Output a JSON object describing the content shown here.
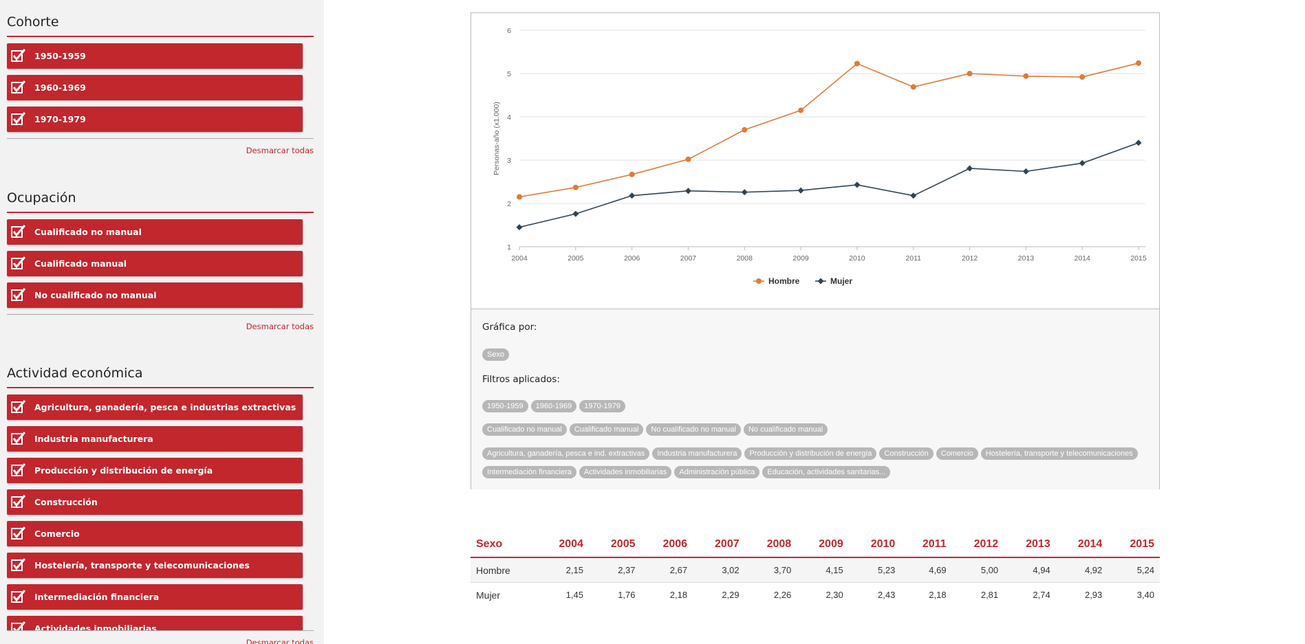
{
  "sidebar": {
    "sections": [
      {
        "title": "Cohorte",
        "items": [
          "1950-1959",
          "1960-1969",
          "1970-1979"
        ],
        "unmark": "Desmarcar todas"
      },
      {
        "title": "Ocupación",
        "items": [
          "Cualificado no manual",
          "Cualificado manual",
          "No cualificado no manual",
          "No cualificado manual"
        ],
        "unmark": "Desmarcar todas"
      },
      {
        "title": "Actividad económica",
        "items": [
          "Agricultura, ganadería, pesca e industrias extractivas",
          "Industria manufacturera",
          "Producción y distribución de energía",
          "Construcción",
          "Comercio",
          "Hostelería, transporte y telecomunicaciones",
          "Intermediación financiera",
          "Actividades inmobiliarias"
        ],
        "unmark": "Desmarcar todas"
      }
    ]
  },
  "info": {
    "grafica_label": "Gráfica por:",
    "grafica_chips": [
      "Sexo"
    ],
    "filtros_label": "Filtros aplicados:",
    "filter_rows": [
      [
        "1950-1959",
        "1960-1969",
        "1970-1979"
      ],
      [
        "Cualificado no manual",
        "Cualificado manual",
        "No cualificado no manual",
        "No cualificado manual"
      ],
      [
        "Agricultura, ganadería, pesca e ind. extractivas",
        "Industria manufacturera",
        "Producción y distribución de energía",
        "Construcción",
        "Comercio",
        "Hostelería, transporte y telecomunicaciones",
        "Intermediación financiera",
        "Actividades inmobiliarias",
        "Administración pública",
        "Educación, actividades sanitarias..."
      ]
    ]
  },
  "colors": {
    "accent": "#c1272d",
    "hombre": "#e07b39",
    "mujer": "#2f4454"
  },
  "chart_data": {
    "type": "line",
    "x": [
      2004,
      2005,
      2006,
      2007,
      2008,
      2009,
      2010,
      2011,
      2012,
      2013,
      2014,
      2015
    ],
    "series": [
      {
        "name": "Hombre",
        "values": [
          2.15,
          2.37,
          2.67,
          3.02,
          3.7,
          4.15,
          5.23,
          4.69,
          5.0,
          4.94,
          4.92,
          5.24
        ]
      },
      {
        "name": "Mujer",
        "values": [
          1.45,
          1.76,
          2.18,
          2.29,
          2.26,
          2.3,
          2.43,
          2.18,
          2.81,
          2.74,
          2.93,
          3.4
        ]
      }
    ],
    "ylabel": "Personas-año (x1.000)",
    "ylim": [
      1,
      6
    ],
    "yticks": [
      1,
      2,
      3,
      4,
      5,
      6
    ],
    "grid": true,
    "legend": "bottom-center"
  },
  "table": {
    "header_label": "Sexo",
    "years": [
      "2004",
      "2005",
      "2006",
      "2007",
      "2008",
      "2009",
      "2010",
      "2011",
      "2012",
      "2013",
      "2014",
      "2015"
    ],
    "rows": [
      {
        "label": "Hombre",
        "values": [
          "2,15",
          "2,37",
          "2,67",
          "3,02",
          "3,70",
          "4,15",
          "5,23",
          "4,69",
          "5,00",
          "4,94",
          "4,92",
          "5,24"
        ]
      },
      {
        "label": "Mujer",
        "values": [
          "1,45",
          "1,76",
          "2,18",
          "2,29",
          "2,26",
          "2,30",
          "2,43",
          "2,18",
          "2,81",
          "2,74",
          "2,93",
          "3,40"
        ]
      }
    ]
  }
}
